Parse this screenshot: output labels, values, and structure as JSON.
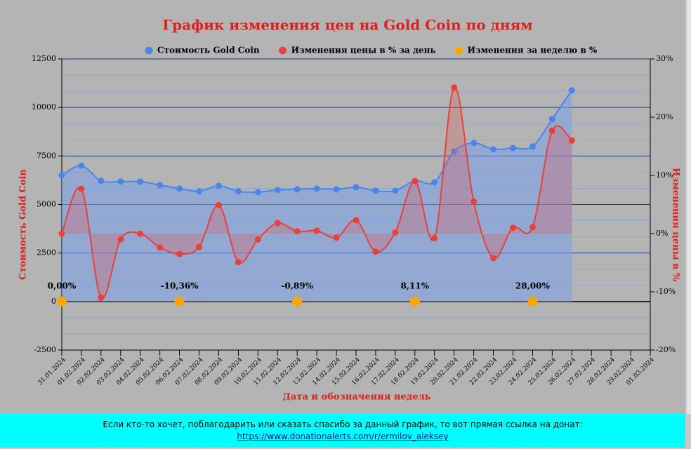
{
  "chart_data": {
    "type": "combo",
    "title": "График изменения цен на Gold Coin по дням",
    "x_label": "Дата и обозначения недель",
    "y_label": "Стоимость Gold Coin",
    "y2_label": "Изменения цены в %",
    "categories": [
      "31.01.2024",
      "01.02.2024",
      "02.02.2024",
      "03.02.2024",
      "04.02.2024",
      "05.02.2024",
      "06.02.2024",
      "07.02.2024",
      "08.02.2024",
      "09.02.2024",
      "10.02.2024",
      "11.02.2024",
      "12.02.2024",
      "13.02.2024",
      "14.02.2024",
      "15.02.2024",
      "16.02.2024",
      "17.02.2024",
      "18.02.2024",
      "19.02.2024",
      "20.02.2024",
      "21.02.2024",
      "22.02.2024",
      "23.02.2024",
      "24.02.2024",
      "25.02.2024",
      "26.02.2024",
      "27.02.2024",
      "28.02.2024",
      "29.02.2024",
      "01.03.2024"
    ],
    "series": [
      {
        "name": "Стоимость Gold Coin",
        "color": "#4a86e8",
        "axis": "y",
        "area_color": "rgba(120,160,235,0.55)",
        "values": [
          6500,
          7000,
          6220,
          6180,
          6180,
          6000,
          5820,
          5680,
          5960,
          5680,
          5640,
          5750,
          5780,
          5820,
          5780,
          5890,
          5710,
          5710,
          6220,
          6140,
          7730,
          8170,
          7840,
          7910,
          7990,
          9400,
          10880,
          null,
          null,
          null,
          null
        ]
      },
      {
        "name": "Изменения цены в % за день",
        "color": "#e8413a",
        "axis": "y2",
        "area_color": "rgba(225,90,90,0.3)",
        "values": [
          0,
          7.7,
          -11,
          -1,
          0,
          -2.4,
          -3.5,
          -2.3,
          4.9,
          -4.9,
          -1,
          1.8,
          0.4,
          0.5,
          -0.7,
          2.3,
          -3.1,
          0.2,
          9,
          -0.8,
          25.1,
          5.5,
          -4.2,
          1,
          1.1,
          17.7,
          16,
          null,
          null,
          null,
          null
        ]
      },
      {
        "name": "Изменения за неделю в %",
        "color": "#ffa500",
        "axis": "baseline",
        "values": [
          0,
          null,
          null,
          null,
          null,
          null,
          -10.36,
          null,
          null,
          null,
          null,
          null,
          -0.89,
          null,
          null,
          null,
          null,
          null,
          8.11,
          null,
          null,
          null,
          null,
          null,
          28,
          null,
          null,
          null,
          null,
          null,
          null
        ],
        "value_labels": [
          "0,00%",
          null,
          null,
          null,
          null,
          null,
          "-10,36%",
          null,
          null,
          null,
          null,
          null,
          "-0,89%",
          null,
          null,
          null,
          null,
          null,
          "8,11%",
          null,
          null,
          null,
          null,
          null,
          "28,00%",
          null,
          null,
          null,
          null,
          null,
          null
        ]
      }
    ],
    "ylim": [
      -2500,
      12500
    ],
    "yticks": [
      -2500,
      0,
      2500,
      5000,
      7500,
      10000,
      12500
    ],
    "y2lim": [
      -20,
      30
    ],
    "y2ticks": [
      {
        "value": -20,
        "label": "-20%"
      },
      {
        "value": -10,
        "label": "-10%"
      },
      {
        "value": 0,
        "label": "0%"
      },
      {
        "value": 10,
        "label": "10%"
      },
      {
        "value": 20,
        "label": "20%"
      },
      {
        "value": 30,
        "label": "30%"
      }
    ],
    "grid": true,
    "legend": "top"
  },
  "banner": {
    "text": "Если кто-то хочет, поблагодарить или сказать спасибо за данный график, то вот прямая ссылка на донат:",
    "link": "https://www.donationalerts.com/r/ermilov_aleksey"
  }
}
